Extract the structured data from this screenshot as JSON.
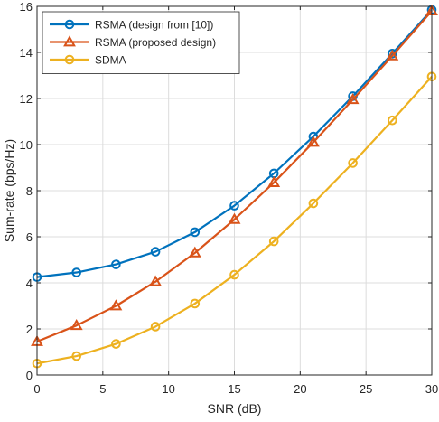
{
  "chart_data": {
    "type": "line",
    "title": "",
    "xlabel": "SNR (dB)",
    "ylabel": "Sum-rate (bps/Hz)",
    "xlim": [
      0,
      30
    ],
    "ylim": [
      0,
      16
    ],
    "xticks": [
      0,
      5,
      10,
      15,
      20,
      25,
      30
    ],
    "yticks": [
      0,
      2,
      4,
      6,
      8,
      10,
      12,
      14,
      16
    ],
    "grid": true,
    "legend_position": "top-left",
    "x": [
      0,
      3,
      6,
      9,
      12,
      15,
      18,
      21,
      24,
      27,
      30
    ],
    "series": [
      {
        "name": "RSMA (design from [10])",
        "color": "#0072BD",
        "marker": "circle",
        "values": [
          4.25,
          4.45,
          4.8,
          5.35,
          6.2,
          7.35,
          8.75,
          10.35,
          12.1,
          13.95,
          15.85
        ]
      },
      {
        "name": "RSMA (proposed design)",
        "color": "#D95319",
        "marker": "triangle",
        "values": [
          1.45,
          2.15,
          3.0,
          4.05,
          5.3,
          6.75,
          8.35,
          10.1,
          11.95,
          13.85,
          15.8
        ]
      },
      {
        "name": "SDMA",
        "color": "#EDB120",
        "marker": "circle",
        "values": [
          0.5,
          0.82,
          1.35,
          2.1,
          3.1,
          4.35,
          5.8,
          7.45,
          9.2,
          11.05,
          12.95
        ]
      }
    ]
  }
}
